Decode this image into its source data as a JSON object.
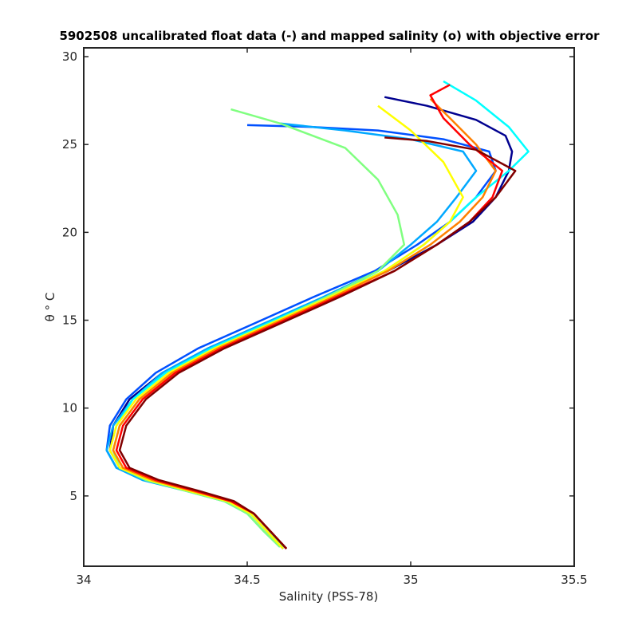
{
  "chart_data": {
    "type": "line",
    "title": "5902508 uncalibrated float data (-) and mapped salinity (o) with objective error",
    "xlabel": "Salinity (PSS-78)",
    "ylabel": "θ ° C",
    "xlim": [
      34.0,
      35.5
    ],
    "ylim": [
      1.0,
      30.5
    ],
    "xticks": [
      34,
      34.5,
      35,
      35.5
    ],
    "xtick_labels": [
      "34",
      "34.5",
      "35",
      "35.5"
    ],
    "yticks": [
      5,
      10,
      15,
      20,
      25,
      30
    ],
    "ytick_labels": [
      "5",
      "10",
      "15",
      "20",
      "25",
      "30"
    ],
    "grid": false,
    "colormap": "jet (profile number, early = blue, late = dark red)",
    "colors": [
      "#00008f",
      "#0050ff",
      "#00a8ff",
      "#00ffff",
      "#80ff80",
      "#ffff00",
      "#ff8000",
      "#ff0000",
      "#800000"
    ],
    "series": [
      {
        "color": "#00008f",
        "x": [
          34.62,
          34.57,
          34.52,
          34.45,
          34.33,
          34.2,
          34.11,
          34.08,
          34.09,
          34.14,
          34.24,
          34.38,
          34.55,
          34.74,
          34.93,
          35.08,
          35.19,
          35.26,
          35.3,
          35.31,
          35.29,
          35.2,
          35.05,
          34.92
        ],
        "y": [
          2.0,
          3.0,
          4.0,
          4.7,
          5.3,
          5.9,
          6.6,
          7.6,
          9.0,
          10.5,
          12.0,
          13.4,
          14.8,
          16.3,
          17.8,
          19.3,
          20.6,
          22.0,
          23.5,
          24.6,
          25.5,
          26.4,
          27.2,
          27.7
        ]
      },
      {
        "color": "#0050ff",
        "x": [
          34.61,
          34.56,
          34.51,
          34.44,
          34.32,
          34.19,
          34.1,
          34.07,
          34.08,
          34.13,
          34.22,
          34.35,
          34.52,
          34.7,
          34.89,
          35.02,
          35.12,
          35.2,
          35.26,
          35.24,
          35.1,
          34.9,
          34.7,
          34.5
        ],
        "y": [
          2.0,
          3.0,
          4.0,
          4.7,
          5.3,
          5.9,
          6.6,
          7.6,
          9.0,
          10.5,
          12.0,
          13.4,
          14.8,
          16.3,
          17.8,
          19.3,
          20.6,
          22.0,
          23.5,
          24.6,
          25.3,
          25.8,
          26.0,
          26.1
        ]
      },
      {
        "color": "#00a8ff",
        "x": [
          34.6,
          34.55,
          34.5,
          34.43,
          34.31,
          34.18,
          34.1,
          34.07,
          34.09,
          34.15,
          34.24,
          34.38,
          34.55,
          34.73,
          34.9,
          35.0,
          35.08,
          35.14,
          35.2,
          35.16,
          35.0,
          34.8,
          34.6
        ],
        "y": [
          2.1,
          3.0,
          4.0,
          4.7,
          5.3,
          5.9,
          6.6,
          7.6,
          9.0,
          10.5,
          12.0,
          13.4,
          14.8,
          16.3,
          17.8,
          19.3,
          20.6,
          22.0,
          23.5,
          24.6,
          25.3,
          25.8,
          26.2
        ]
      },
      {
        "color": "#00ffff",
        "x": [
          34.61,
          34.56,
          34.51,
          34.44,
          34.32,
          34.2,
          34.11,
          34.08,
          34.1,
          34.15,
          34.25,
          34.39,
          34.56,
          34.74,
          34.92,
          35.04,
          35.12,
          35.2,
          35.3,
          35.36,
          35.3,
          35.2,
          35.1
        ],
        "y": [
          2.1,
          3.0,
          4.0,
          4.7,
          5.3,
          5.9,
          6.6,
          7.6,
          9.0,
          10.5,
          12.0,
          13.4,
          14.8,
          16.3,
          17.8,
          19.3,
          20.6,
          22.0,
          23.5,
          24.6,
          26.0,
          27.5,
          28.6
        ]
      },
      {
        "color": "#80ff80",
        "x": [
          34.6,
          34.55,
          34.5,
          34.43,
          34.31,
          34.19,
          34.11,
          34.09,
          34.11,
          34.17,
          34.27,
          34.41,
          34.57,
          34.74,
          34.9,
          34.98,
          34.96,
          34.9,
          34.8,
          34.6,
          34.45
        ],
        "y": [
          2.1,
          3.0,
          4.0,
          4.7,
          5.3,
          5.9,
          6.6,
          7.6,
          9.0,
          10.5,
          12.0,
          13.4,
          14.8,
          16.3,
          17.8,
          19.3,
          21.0,
          23.0,
          24.8,
          26.2,
          27.0
        ]
      },
      {
        "color": "#ffff00",
        "x": [
          34.61,
          34.56,
          34.51,
          34.44,
          34.32,
          34.2,
          34.11,
          34.08,
          34.1,
          34.16,
          34.26,
          34.4,
          34.57,
          34.75,
          34.92,
          35.04,
          35.12,
          35.16,
          35.1,
          35.0,
          34.9
        ],
        "y": [
          2.0,
          3.0,
          4.0,
          4.7,
          5.3,
          5.9,
          6.6,
          7.6,
          9.0,
          10.5,
          12.0,
          13.4,
          14.8,
          16.3,
          17.8,
          19.3,
          20.6,
          22.0,
          24.0,
          25.8,
          27.2
        ]
      },
      {
        "color": "#ff8000",
        "x": [
          34.62,
          34.57,
          34.52,
          34.45,
          34.33,
          34.21,
          34.12,
          34.09,
          34.11,
          34.17,
          34.27,
          34.41,
          34.58,
          34.76,
          34.93,
          35.06,
          35.15,
          35.22,
          35.26,
          35.2,
          35.12,
          35.06
        ],
        "y": [
          2.0,
          3.0,
          4.0,
          4.7,
          5.3,
          5.9,
          6.6,
          7.6,
          9.0,
          10.5,
          12.0,
          13.4,
          14.8,
          16.3,
          17.8,
          19.3,
          20.6,
          22.0,
          23.5,
          25.0,
          26.5,
          27.6
        ]
      },
      {
        "color": "#ff0000",
        "x": [
          34.62,
          34.57,
          34.52,
          34.45,
          34.34,
          34.22,
          34.13,
          34.1,
          34.12,
          34.18,
          34.28,
          34.42,
          34.59,
          34.77,
          34.95,
          35.08,
          35.18,
          35.25,
          35.28,
          35.18,
          35.1,
          35.06,
          35.12
        ],
        "y": [
          2.0,
          3.0,
          4.0,
          4.7,
          5.3,
          5.9,
          6.6,
          7.6,
          9.0,
          10.5,
          12.0,
          13.4,
          14.8,
          16.3,
          17.8,
          19.3,
          20.6,
          22.0,
          23.5,
          25.0,
          26.5,
          27.8,
          28.4
        ]
      },
      {
        "color": "#800000",
        "x": [
          34.62,
          34.57,
          34.52,
          34.46,
          34.35,
          34.23,
          34.14,
          34.11,
          34.13,
          34.19,
          34.29,
          34.43,
          34.6,
          34.78,
          34.95,
          35.08,
          35.18,
          35.26,
          35.32,
          35.2,
          35.05,
          34.92
        ],
        "y": [
          2.0,
          3.0,
          4.0,
          4.7,
          5.3,
          5.9,
          6.6,
          7.6,
          9.0,
          10.5,
          12.0,
          13.4,
          14.8,
          16.3,
          17.8,
          19.3,
          20.6,
          22.0,
          23.5,
          24.7,
          25.2,
          25.4
        ]
      }
    ]
  }
}
